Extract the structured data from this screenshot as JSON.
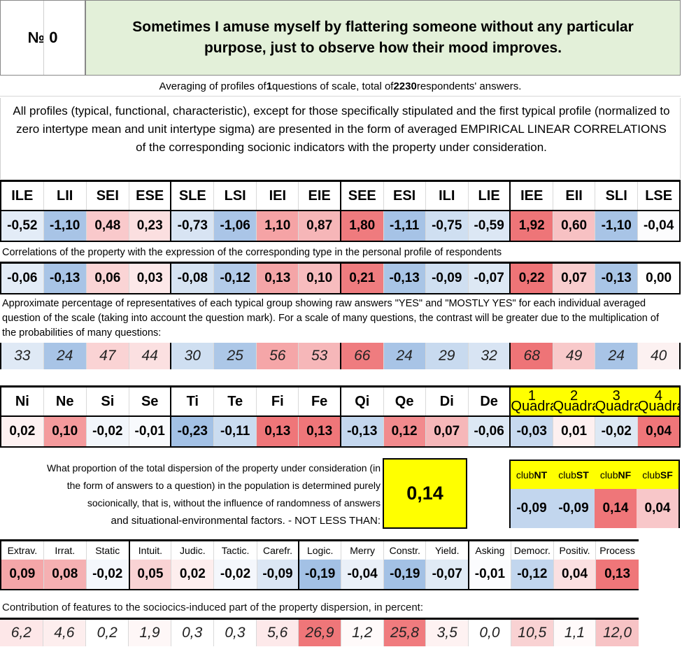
{
  "header": {
    "number": "№ 0",
    "title": "Sometimes I amuse myself by flattering someone without any particular purpose, just to observe how their mood improves."
  },
  "averaging": {
    "prefix": "Averaging of profiles of ",
    "questions": "1",
    "middle": " questions of scale, total of ",
    "respondents": "2230",
    "suffix": " respondents' answers."
  },
  "description": "All profiles (typical, functional, characteristic), except for those specifically stipulated and the first typical profile (normalized to zero intertype mean and unit intertype sigma) are presented in the form of averaged EMPIRICAL LINEAR CORRELATIONS of the corresponding socionic indicators with the property under consideration.",
  "types": {
    "labels": [
      "ILE",
      "LII",
      "SEI",
      "ESE",
      "SLE",
      "LSI",
      "IEI",
      "EIE",
      "SEE",
      "ESI",
      "ILI",
      "LIE",
      "IEE",
      "EII",
      "SLI",
      "LSE"
    ],
    "values": [
      "-0,52",
      "-1,10",
      "0,48",
      "0,23",
      "-0,73",
      "-1,06",
      "1,10",
      "0,87",
      "1,80",
      "-1,11",
      "-0,75",
      "-0,59",
      "1,92",
      "0,60",
      "-1,10",
      "-0,04"
    ],
    "value_colors": [
      "#e3ecf7",
      "#a8c4e6",
      "#f9c9cb",
      "#fbdfe0",
      "#d8e4f3",
      "#aac5e7",
      "#f5a3a5",
      "#f6b6b8",
      "#ef7b7e",
      "#a6c3e6",
      "#cfdff1",
      "#dce7f4",
      "#ee7578",
      "#f7c1c3",
      "#a8c4e6",
      "#fcfcfd"
    ],
    "corr_caption": "Correlations of the property with the expression of the corresponding type in the personal profile of respondents",
    "corr": [
      "-0,06",
      "-0,13",
      "0,06",
      "0,03",
      "-0,08",
      "-0,12",
      "0,13",
      "0,10",
      "0,21",
      "-0,13",
      "-0,09",
      "-0,07",
      "0,22",
      "0,07",
      "-0,13",
      "0,00"
    ],
    "corr_colors": [
      "#e3ecf7",
      "#a8c4e6",
      "#fad4d5",
      "#fce8e9",
      "#d6e3f2",
      "#b3cbe9",
      "#f4a5a7",
      "#f7bcbe",
      "#ef7c7f",
      "#a9c5e6",
      "#cfdff1",
      "#dde8f4",
      "#ee7477",
      "#f8cdce",
      "#a9c5e6",
      "#ffffff"
    ],
    "pct_caption": "Approximate percentage of representatives of each typical group showing raw answers \"YES\" and \"MOSTLY YES\" for each individual averaged question of the scale (taking into account the question mark). For a scale of many questions, the contrast will be greater due to the multiplication of the probabilities of many questions:",
    "pct": [
      "33",
      "24",
      "47",
      "44",
      "30",
      "25",
      "56",
      "53",
      "66",
      "24",
      "29",
      "32",
      "68",
      "49",
      "24",
      "40"
    ],
    "pct_colors": [
      "#dfe9f5",
      "#a8c4e6",
      "#fad3d4",
      "#fbe0e1",
      "#cfdff1",
      "#acc7e7",
      "#f5a6a8",
      "#f6b7b9",
      "#ef7c7f",
      "#a8c4e6",
      "#c8daef",
      "#d8e4f3",
      "#ee7477",
      "#f8c9ca",
      "#a8c4e6",
      "#fcf1f1"
    ]
  },
  "functions": {
    "labels": [
      "Ni",
      "Ne",
      "Si",
      "Se",
      "Ti",
      "Te",
      "Fi",
      "Fe",
      "Qi",
      "Qe",
      "Di",
      "De"
    ],
    "values": [
      "0,02",
      "0,10",
      "-0,02",
      "-0,01",
      "-0,23",
      "-0,11",
      "0,13",
      "0,13",
      "-0,13",
      "0,12",
      "0,07",
      "-0,06"
    ],
    "colors": [
      "#fdf1f1",
      "#f49a9c",
      "#f2f6fb",
      "#f8fafd",
      "#a3c1e5",
      "#cadcf0",
      "#ef7679",
      "#ef7679",
      "#c4d7ee",
      "#f28a8d",
      "#f6b7b9",
      "#dde8f4"
    ]
  },
  "quadras": {
    "nums": [
      "1",
      "2",
      "3",
      "4"
    ],
    "word": "Quadra",
    "values": [
      "-0,03",
      "0,01",
      "-0,02",
      "0,04"
    ],
    "colors": [
      "#c7d9ef",
      "#fdf0f0",
      "#dde8f4",
      "#ef7679"
    ]
  },
  "proportion": {
    "text": "What proportion of the total dispersion of the property under consideration (in the form of answers to a question) in the population is determined purely socionically, that is, without the influence of randomness of answers",
    "text_end": "and situational-environmental factors. - NOT LESS THAN:",
    "value": "0,14"
  },
  "clubs": {
    "prefix": "club",
    "names": [
      "NT",
      "ST",
      "NF",
      "SF"
    ],
    "values": [
      "-0,09",
      "-0,09",
      "0,14",
      "0,04"
    ],
    "colors": [
      "#c2d6ee",
      "#c2d6ee",
      "#ef7679",
      "#f8c7c9"
    ]
  },
  "features": {
    "labels": [
      "Extrav.",
      "Irrat.",
      "Static",
      "Intuit.",
      "Judic.",
      "Tactic.",
      "Carefr.",
      "Logic.",
      "Merry",
      "Constr.",
      "Yield.",
      "Asking",
      "Democr.",
      "Positiv.",
      "Process"
    ],
    "values": [
      "0,09",
      "0,08",
      "-0,02",
      "0,05",
      "0,02",
      "-0,02",
      "-0,09",
      "-0,19",
      "-0,04",
      "-0,19",
      "-0,07",
      "-0,01",
      "-0,12",
      "0,04",
      "0,13"
    ],
    "colors": [
      "#f4a6a8",
      "#f5b0b2",
      "#f4f7fc",
      "#f9d3d4",
      "#fdeeee",
      "#f4f7fc",
      "#dbe6f4",
      "#a3c1e5",
      "#eaf0f8",
      "#a3c1e5",
      "#e0eaf5",
      "#fbfcfe",
      "#c2d6ee",
      "#fbe0e1",
      "#ef7679"
    ],
    "contrib_caption": "Contribution of features to the sociocics-induced part of the property dispersion, in percent:",
    "contrib": [
      "6,2",
      "4,6",
      "0,2",
      "1,9",
      "0,3",
      "0,3",
      "5,6",
      "26,9",
      "1,2",
      "25,8",
      "3,5",
      "0,0",
      "10,5",
      "1,1",
      "12,0"
    ],
    "contrib_colors": [
      "#fde7e8",
      "#fdeeee",
      "#ffffff",
      "#fef7f7",
      "#ffffff",
      "#ffffff",
      "#fde9ea",
      "#ef7679",
      "#fffafa",
      "#f07b7e",
      "#fef2f2",
      "#ffffff",
      "#f9d2d3",
      "#fffafa",
      "#f7c3c5"
    ]
  }
}
